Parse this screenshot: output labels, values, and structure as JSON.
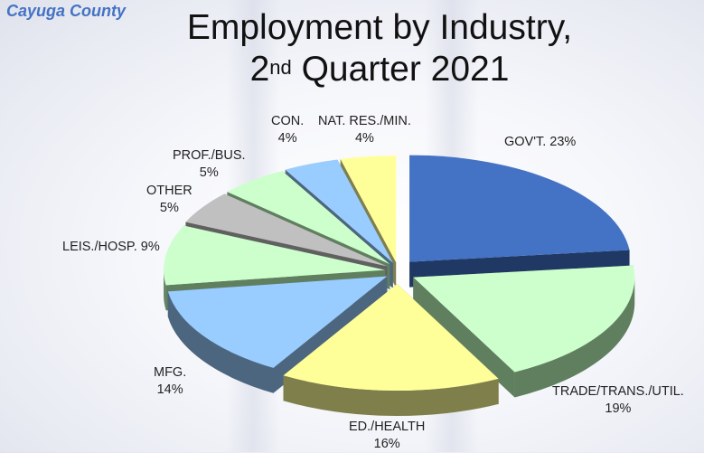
{
  "header": {
    "county": "Cayuga County",
    "title_line1": "Employment by Industry,",
    "title_line2_num": "2",
    "title_line2_sup": "nd",
    "title_line2_rest": " Quarter 2021"
  },
  "chart_data": {
    "type": "pie",
    "style": "3d-exploded",
    "title": "Employment by Industry, 2nd Quarter 2021",
    "subtitle": "Cayuga County",
    "unit": "%",
    "slices": [
      {
        "label": "GOV'T.",
        "value": 23,
        "color": "#4472c4",
        "side_color": "#1f3864"
      },
      {
        "label": "TRADE/TRANS./UTIL.",
        "value": 19,
        "color": "#ccffcc",
        "side_color": "#5f7f5f"
      },
      {
        "label": "ED./HEALTH",
        "value": 16,
        "color": "#ffff99",
        "side_color": "#7f7f4c"
      },
      {
        "label": "MFG.",
        "value": 14,
        "color": "#99ccff",
        "side_color": "#4c667f"
      },
      {
        "label": "LEIS./HOSP.",
        "value": 9,
        "color": "#ccffcc",
        "side_color": "#5f7f5f"
      },
      {
        "label": "OTHER",
        "value": 5,
        "color": "#c0c0c0",
        "side_color": "#606060"
      },
      {
        "label": "PROF./BUS.",
        "value": 5,
        "color": "#ccffcc",
        "side_color": "#5f7f5f"
      },
      {
        "label": "CON.",
        "value": 4,
        "color": "#99ccff",
        "side_color": "#4c667f"
      },
      {
        "label": "NAT. RES./MIN.",
        "value": 4,
        "color": "#ffff99",
        "side_color": "#7f7f4c"
      }
    ]
  },
  "labels": {
    "govt": {
      "name": "GOV'T. 23%"
    },
    "trade": {
      "name": "TRADE/TRANS./UTIL.",
      "pct": "19%"
    },
    "ed": {
      "name": "ED./HEALTH",
      "pct": "16%"
    },
    "mfg": {
      "name": "MFG.",
      "pct": "14%"
    },
    "leis": {
      "name": "LEIS./HOSP. 9%"
    },
    "other": {
      "name": "OTHER",
      "pct": "5%"
    },
    "prof": {
      "name": "PROF./BUS.",
      "pct": "5%"
    },
    "con": {
      "name": "CON.",
      "pct": "4%"
    },
    "nat": {
      "name": "NAT. RES./MIN.",
      "pct": "4%"
    }
  }
}
